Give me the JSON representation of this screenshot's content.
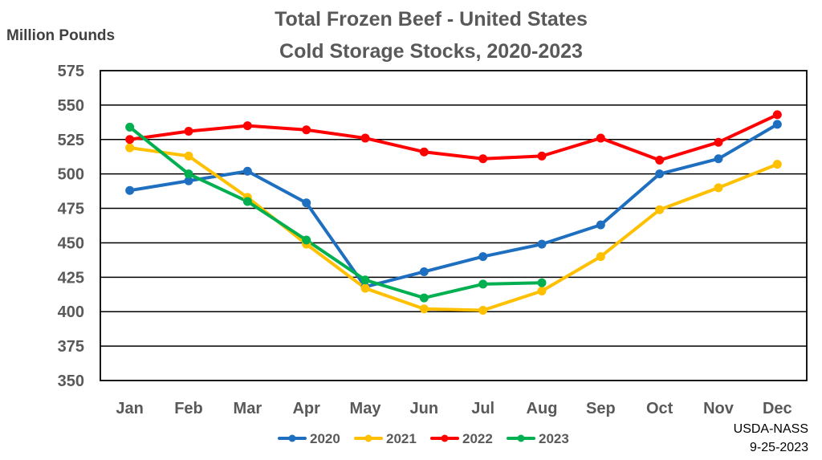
{
  "chart_data": {
    "type": "line",
    "title_lines": [
      "Total Frozen Beef - United States",
      "Cold Storage Stocks, 2020-2023"
    ],
    "ylabel": "Million Pounds",
    "xlabel": "",
    "categories": [
      "Jan",
      "Feb",
      "Mar",
      "Apr",
      "May",
      "Jun",
      "Jul",
      "Aug",
      "Sep",
      "Oct",
      "Nov",
      "Dec"
    ],
    "ylim": [
      350,
      575
    ],
    "yticks": [
      350,
      375,
      400,
      425,
      450,
      475,
      500,
      525,
      550,
      575
    ],
    "grid": true,
    "legend_position": "bottom",
    "series": [
      {
        "name": "2020",
        "color": "#1f6fc1",
        "values": [
          488,
          495,
          502,
          479,
          418,
          429,
          440,
          449,
          463,
          500,
          511,
          536
        ]
      },
      {
        "name": "2021",
        "color": "#ffc000",
        "values": [
          519,
          513,
          483,
          449,
          417,
          402,
          401,
          415,
          440,
          474,
          490,
          507
        ]
      },
      {
        "name": "2022",
        "color": "#ff0000",
        "values": [
          525,
          531,
          535,
          532,
          526,
          516,
          511,
          513,
          526,
          510,
          523,
          543
        ]
      },
      {
        "name": "2023",
        "color": "#00b050",
        "values": [
          534,
          500,
          480,
          452,
          423,
          410,
          420,
          421,
          null,
          null,
          null,
          null
        ]
      }
    ],
    "source_note": [
      "USDA-NASS",
      "9-25-2023"
    ]
  }
}
